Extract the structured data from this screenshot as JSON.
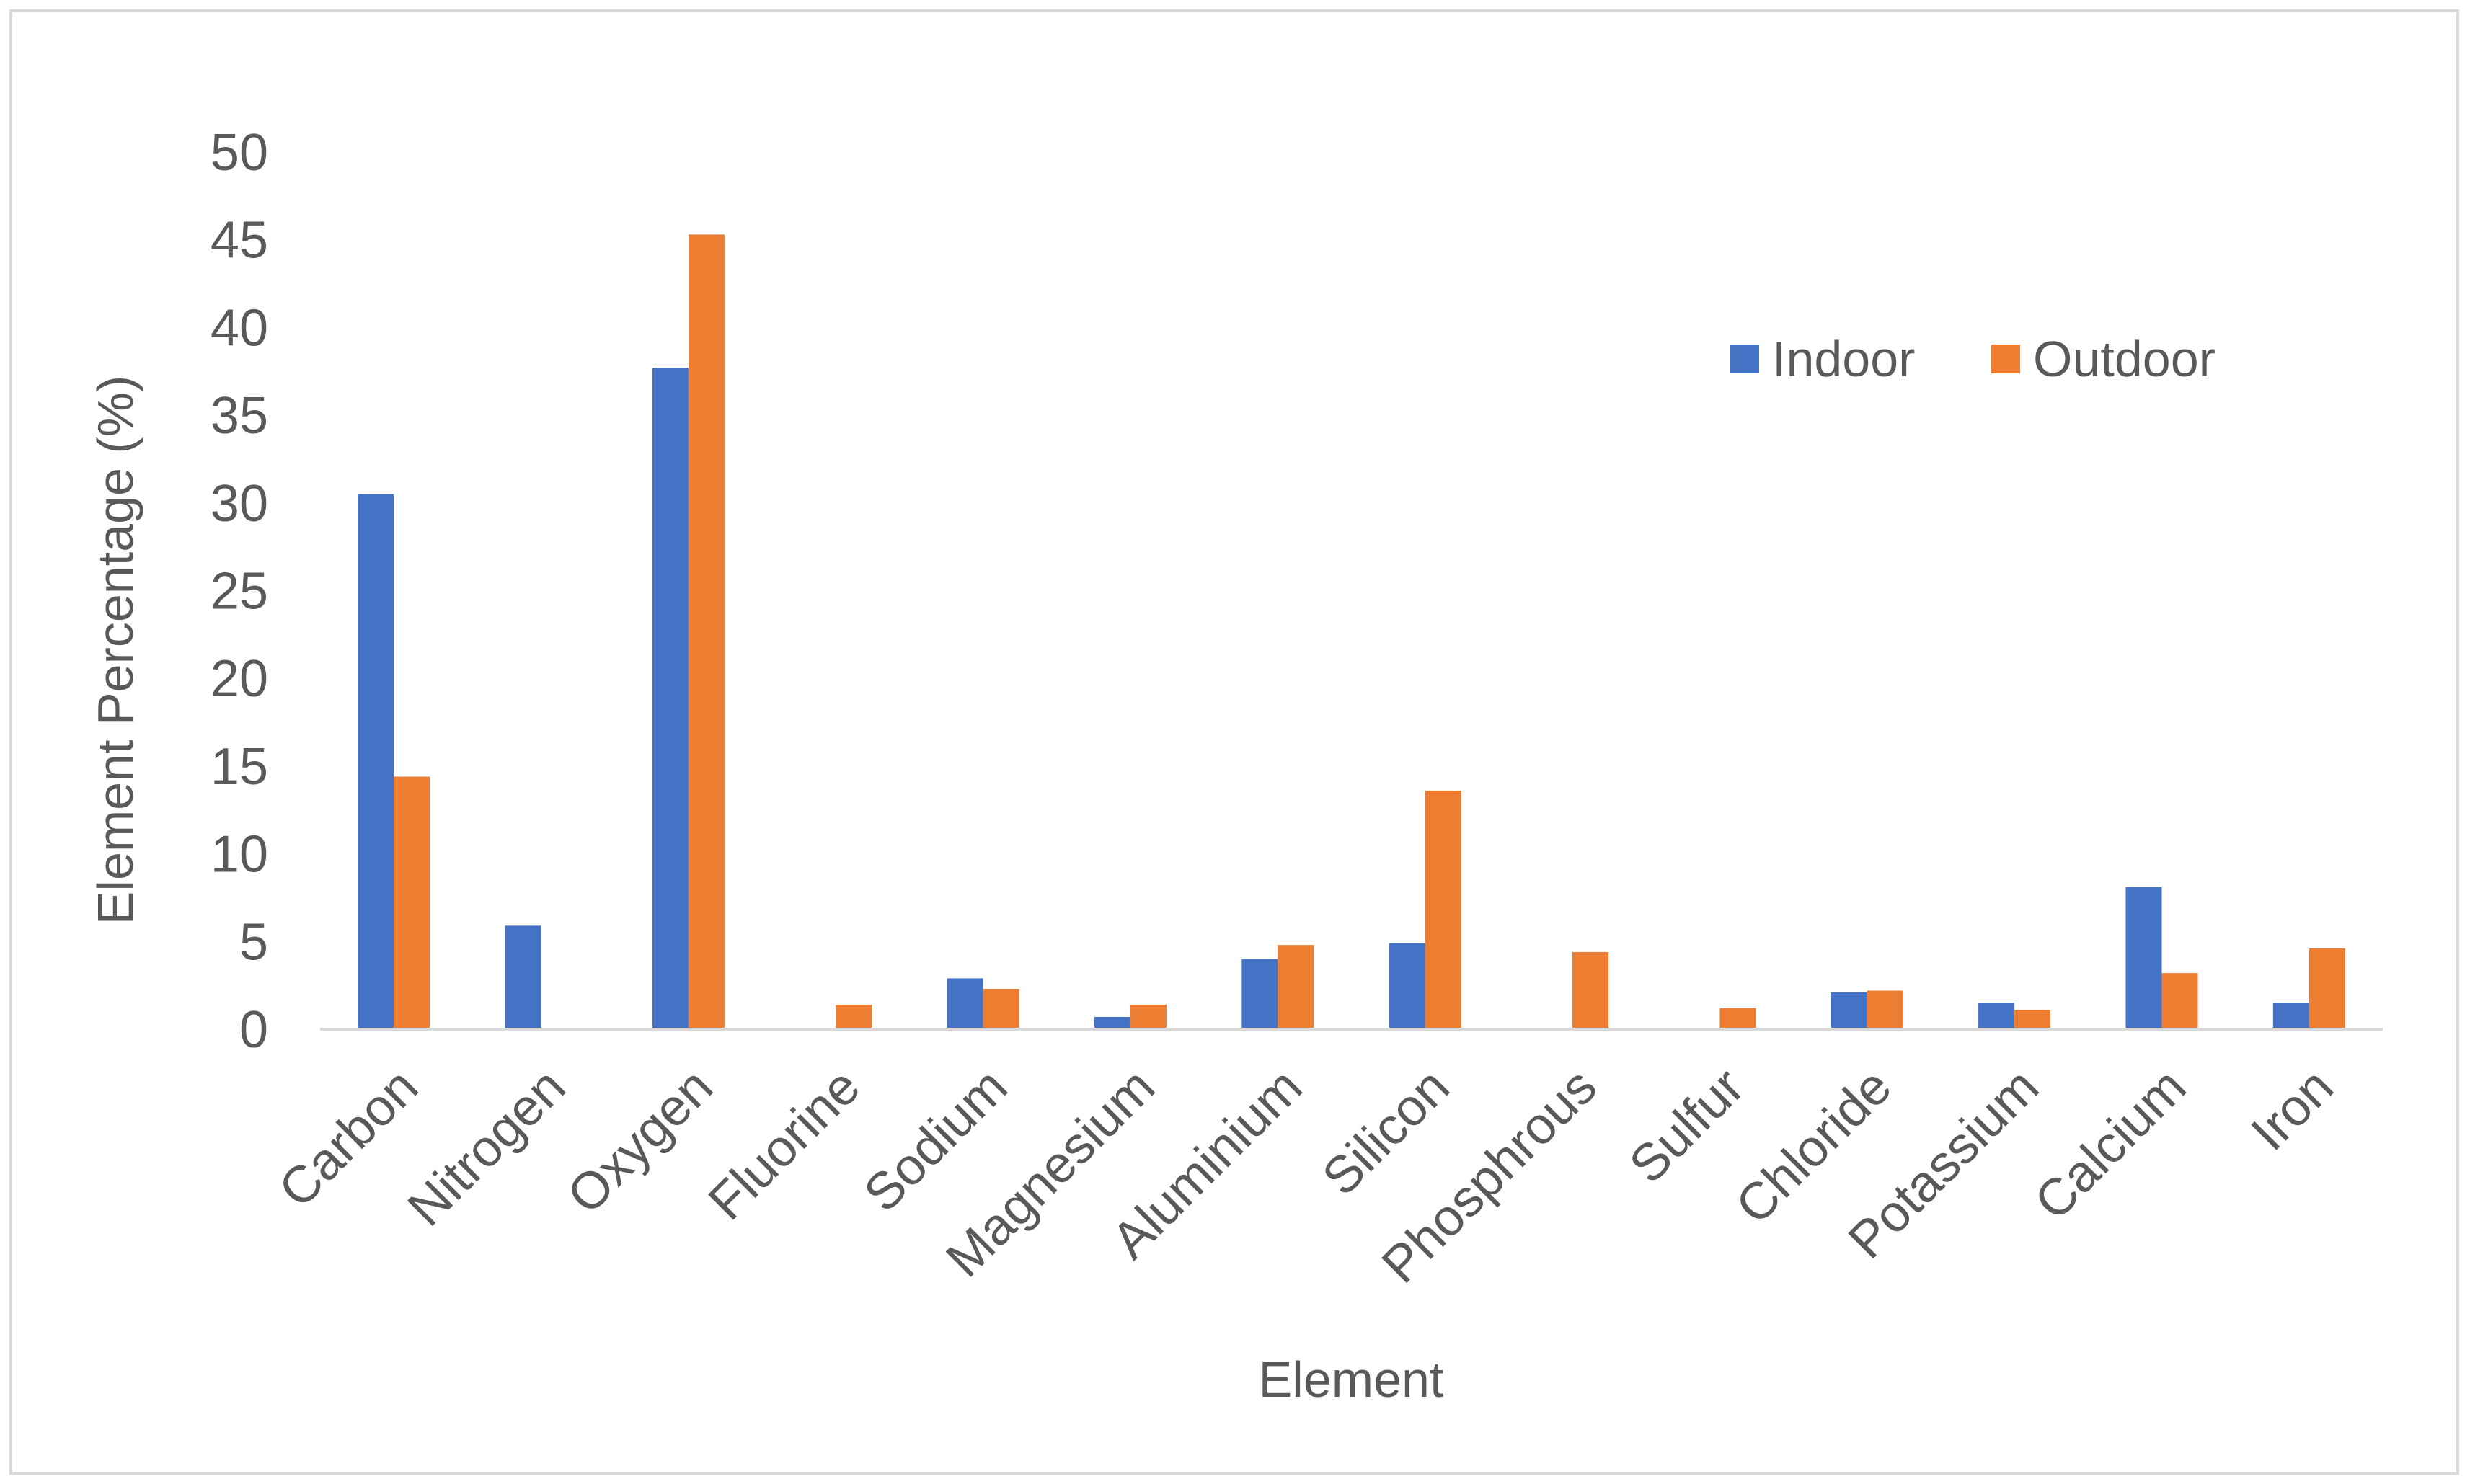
{
  "chart_data": {
    "type": "bar",
    "title": "",
    "xlabel": "Element",
    "ylabel": "Element Percentage (%)",
    "ylim": [
      0,
      50
    ],
    "yticks": [
      0,
      5,
      10,
      15,
      20,
      25,
      30,
      35,
      40,
      45,
      50
    ],
    "grid": false,
    "legend_position": "top-right",
    "categories": [
      "Carbon",
      "Nitrogen",
      "Oxygen",
      "Fluorine",
      "Sodium",
      "Magnesium",
      "Aluminium",
      "Silicon",
      "Phosphrous",
      "Sulfur",
      "Chloride",
      "Potassium",
      "Calcium",
      "Iron"
    ],
    "series": [
      {
        "name": "Indoor",
        "color": "#4472C4",
        "values": [
          30.5,
          5.9,
          37.7,
          0,
          2.9,
          0.7,
          4.0,
          4.9,
          0,
          0,
          2.1,
          1.5,
          8.1,
          1.5
        ]
      },
      {
        "name": "Outdoor",
        "color": "#ED7D31",
        "values": [
          14.4,
          0,
          45.3,
          1.4,
          2.3,
          1.4,
          4.8,
          13.6,
          4.4,
          1.2,
          2.2,
          1.1,
          3.2,
          4.6
        ]
      }
    ]
  }
}
